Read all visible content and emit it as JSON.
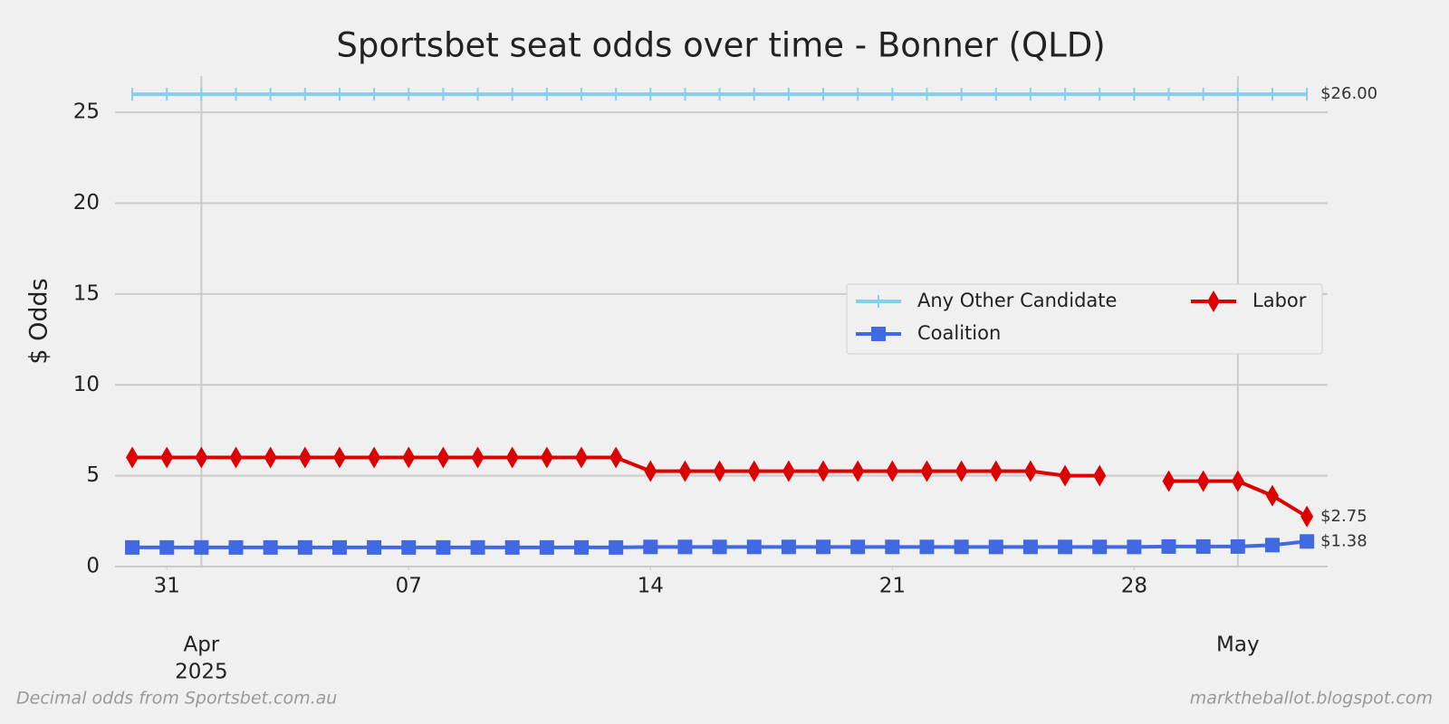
{
  "chart_data": {
    "type": "line",
    "title": "Sportsbet seat odds over time - Bonner (QLD)",
    "ylabel": "$ Odds",
    "footer_left": "Decimal odds from Sportsbet.com.au",
    "footer_right": "marktheballot.blogspot.com",
    "x": [
      "2025-03-30",
      "2025-03-31",
      "2025-04-01",
      "2025-04-02",
      "2025-04-03",
      "2025-04-04",
      "2025-04-05",
      "2025-04-06",
      "2025-04-07",
      "2025-04-08",
      "2025-04-09",
      "2025-04-10",
      "2025-04-11",
      "2025-04-12",
      "2025-04-13",
      "2025-04-14",
      "2025-04-15",
      "2025-04-16",
      "2025-04-17",
      "2025-04-18",
      "2025-04-19",
      "2025-04-20",
      "2025-04-21",
      "2025-04-22",
      "2025-04-23",
      "2025-04-24",
      "2025-04-25",
      "2025-04-26",
      "2025-04-27",
      "2025-04-28",
      "2025-04-29",
      "2025-04-30",
      "2025-05-01",
      "2025-05-02",
      "2025-05-03"
    ],
    "series": [
      {
        "name": "Any Other Candidate",
        "color": "#87ceeb",
        "marker": "tick",
        "values": [
          26,
          26,
          26,
          26,
          26,
          26,
          26,
          26,
          26,
          26,
          26,
          26,
          26,
          26,
          26,
          26,
          26,
          26,
          26,
          26,
          26,
          26,
          26,
          26,
          26,
          26,
          26,
          26,
          26,
          26,
          26,
          26,
          26,
          26,
          26
        ],
        "value_labels": [
          null,
          null,
          null,
          null,
          null,
          null,
          null,
          null,
          null,
          null,
          null,
          null,
          null,
          null,
          null,
          null,
          null,
          null,
          null,
          null,
          null,
          null,
          null,
          null,
          null,
          null,
          null,
          null,
          null,
          null,
          null,
          null,
          null,
          null,
          "$26.00"
        ]
      },
      {
        "name": "Coalition",
        "color": "#4169e1",
        "marker": "square",
        "values": [
          1.05,
          1.05,
          1.05,
          1.05,
          1.05,
          1.05,
          1.05,
          1.05,
          1.05,
          1.05,
          1.05,
          1.05,
          1.05,
          1.05,
          1.05,
          1.08,
          1.08,
          1.08,
          1.08,
          1.08,
          1.08,
          1.08,
          1.08,
          1.08,
          1.08,
          1.08,
          1.08,
          1.08,
          1.08,
          1.08,
          1.1,
          1.1,
          1.1,
          1.18,
          1.38
        ],
        "value_labels": [
          null,
          null,
          null,
          null,
          null,
          null,
          null,
          null,
          null,
          null,
          null,
          null,
          null,
          null,
          null,
          null,
          null,
          null,
          null,
          null,
          null,
          null,
          null,
          null,
          null,
          null,
          null,
          null,
          null,
          null,
          null,
          null,
          null,
          null,
          "$1.38"
        ]
      },
      {
        "name": "Labor",
        "color": "#dd0000",
        "marker": "diamond",
        "values": [
          6,
          6,
          6,
          6,
          6,
          6,
          6,
          6,
          6,
          6,
          6,
          6,
          6,
          6,
          6,
          5.25,
          5.25,
          5.25,
          5.25,
          5.25,
          5.25,
          5.25,
          5.25,
          5.25,
          5.25,
          5.25,
          5.25,
          5,
          5,
          null,
          4.7,
          4.7,
          4.7,
          3.9,
          2.75
        ],
        "value_labels": [
          null,
          null,
          null,
          null,
          null,
          null,
          null,
          null,
          null,
          null,
          null,
          null,
          null,
          null,
          null,
          null,
          null,
          null,
          null,
          null,
          null,
          null,
          null,
          null,
          null,
          null,
          null,
          null,
          null,
          null,
          null,
          null,
          null,
          null,
          "$2.75"
        ]
      }
    ],
    "ylim": [
      0,
      27
    ],
    "yticks": [
      0,
      5,
      10,
      15,
      20,
      25
    ],
    "xticks": [
      {
        "value": "2025-03-31",
        "label": "31"
      },
      {
        "value": "2025-04-07",
        "label": "07"
      },
      {
        "value": "2025-04-14",
        "label": "14"
      },
      {
        "value": "2025-04-21",
        "label": "21"
      },
      {
        "value": "2025-04-28",
        "label": "28"
      }
    ],
    "xticks_major": [
      {
        "value": "2025-04-01",
        "label": [
          "Apr",
          "2025"
        ]
      },
      {
        "value": "2025-05-01",
        "label": [
          "May"
        ]
      }
    ],
    "grid": true,
    "legend": "center right",
    "legend_columns": 2
  }
}
